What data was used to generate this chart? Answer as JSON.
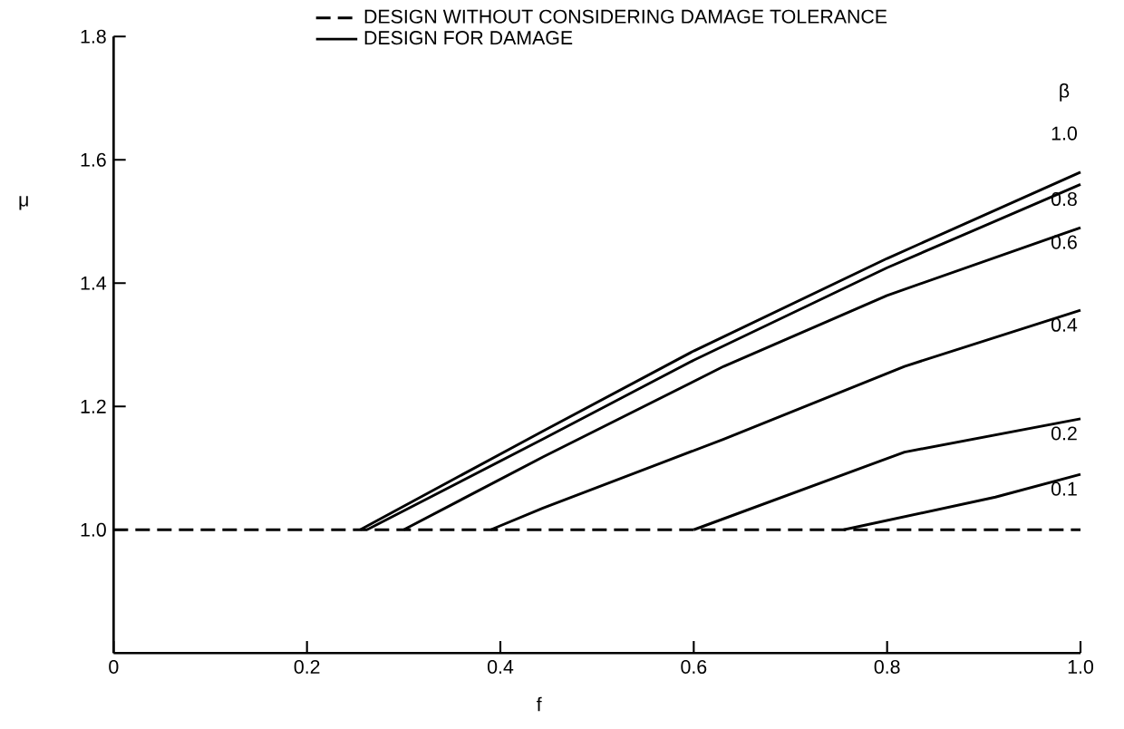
{
  "chart_data": {
    "type": "line",
    "xlabel": "f",
    "ylabel": "μ",
    "legend_title": "β",
    "annotations": [
      "DESIGN FOR DAMAGE"
    ],
    "xlim": [
      0,
      1.0
    ],
    "ylim": [
      0.8,
      1.8
    ],
    "xticks": [
      {
        "value": 0,
        "label": "0"
      },
      {
        "value": 0.2,
        "label": "0.2"
      },
      {
        "value": 0.4,
        "label": "0.4"
      },
      {
        "value": 0.6,
        "label": "0.6"
      },
      {
        "value": 0.8,
        "label": "0.8"
      },
      {
        "value": 1.0,
        "label": "1.0"
      }
    ],
    "yticks": [
      {
        "value": 1.0,
        "label": "1.0"
      },
      {
        "value": 1.2,
        "label": "1.2"
      },
      {
        "value": 1.4,
        "label": "1.4"
      },
      {
        "value": 1.6,
        "label": "1.6"
      },
      {
        "value": 1.8,
        "label": "1.8"
      }
    ],
    "legend": "top",
    "marker": "none",
    "grid": false,
    "series": [
      {
        "name": "DESIGN WITHOUT CONSIDERING DAMAGE TOLERANCE",
        "color": "#000000",
        "line_style": "dashed",
        "x": [
          0,
          1.0
        ],
        "values": [
          1.0,
          1.0
        ]
      },
      {
        "name": "1.0",
        "color": "#000000",
        "line_style": "solid",
        "x": [
          0.255,
          0.444,
          0.6,
          0.8,
          1.0
        ],
        "values": [
          1.0,
          1.16,
          1.29,
          1.44,
          1.58
        ]
      },
      {
        "name": "0.8",
        "color": "#000000",
        "line_style": "solid",
        "x": [
          0.262,
          0.444,
          0.6,
          0.8,
          1.0
        ],
        "values": [
          1.0,
          1.147,
          1.275,
          1.425,
          1.56
        ]
      },
      {
        "name": "0.6",
        "color": "#000000",
        "line_style": "solid",
        "x": [
          0.3,
          0.444,
          0.631,
          0.8,
          1.0
        ],
        "values": [
          1.0,
          1.118,
          1.265,
          1.38,
          1.49
        ]
      },
      {
        "name": "0.4",
        "color": "#000000",
        "line_style": "solid",
        "x": [
          0.39,
          0.444,
          0.631,
          0.818,
          1.0
        ],
        "values": [
          1.0,
          1.035,
          1.147,
          1.265,
          1.356
        ]
      },
      {
        "name": "0.2",
        "color": "#000000",
        "line_style": "solid",
        "x": [
          0.6,
          0.818,
          1.0
        ],
        "values": [
          1.0,
          1.126,
          1.18
        ]
      },
      {
        "name": "0.1",
        "color": "#000000",
        "line_style": "solid",
        "x": [
          0.755,
          0.912,
          1.0
        ],
        "values": [
          1.0,
          1.053,
          1.09
        ]
      }
    ]
  }
}
